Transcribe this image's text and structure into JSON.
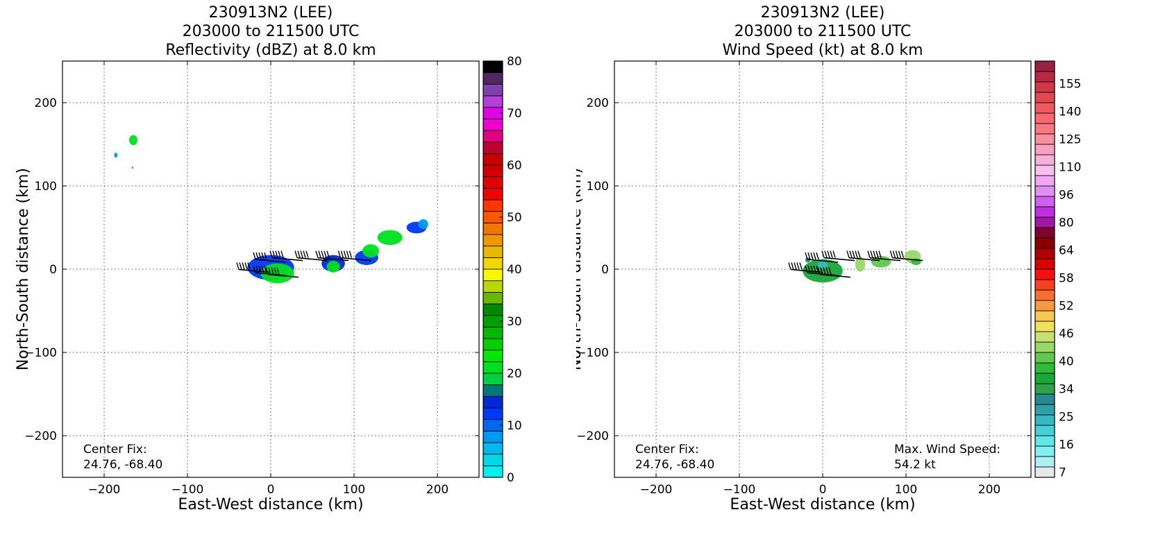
{
  "charts": [
    {
      "title_lines": [
        "230913N2 (LEE)",
        "203000 to 211500 UTC",
        "Reflectivity (dBZ) at 8.0 km"
      ],
      "xlabel": "East-West distance (km)",
      "ylabel": "North-South distance (km)",
      "info_left": [
        "Center Fix:",
        "24.76, -68.40"
      ],
      "colorbar_ticks": [
        "0",
        "10",
        "20",
        "30",
        "40",
        "50",
        "60",
        "70",
        "80"
      ]
    },
    {
      "title_lines": [
        "230913N2 (LEE)",
        "203000 to 211500 UTC",
        "Wind Speed (kt) at 8.0 km"
      ],
      "xlabel": "East-West distance (km)",
      "ylabel": "North-South distance (km)",
      "info_left": [
        "Center Fix:",
        "24.76, -68.40"
      ],
      "info_right": [
        "Max. Wind Speed:",
        "54.2 kt"
      ],
      "colorbar_ticks": [
        "7",
        "16",
        "25",
        "34",
        "40",
        "46",
        "52",
        "58",
        "64",
        "80",
        "96",
        "110",
        "125",
        "140",
        "155"
      ]
    }
  ],
  "chart_data": [
    {
      "type": "heatmap",
      "variable": "Reflectivity (dBZ)",
      "x_ticks": [
        -200,
        -100,
        0,
        100,
        200
      ],
      "y_ticks": [
        -200,
        -100,
        0,
        100,
        200
      ],
      "xlim": [
        -250,
        250
      ],
      "ylim": [
        -250,
        250
      ],
      "grid": true,
      "colorbar": {
        "range": [
          0,
          80
        ],
        "step": 2.5,
        "colors": [
          "#00f0f0",
          "#00d8e8",
          "#00b8f0",
          "#0098f0",
          "#0068f0",
          "#0038f8",
          "#0028d8",
          "#007878",
          "#00d040",
          "#00e020",
          "#00e800",
          "#00d000",
          "#00b800",
          "#00a000",
          "#008800",
          "#68b800",
          "#b8d800",
          "#f8f800",
          "#f0d800",
          "#e8b800",
          "#f09800",
          "#f07800",
          "#f85800",
          "#f83800",
          "#f00000",
          "#e00000",
          "#d00000",
          "#c80000",
          "#c00030",
          "#e00080",
          "#f000d0",
          "#e000e8",
          "#b040d8",
          "#8040b0",
          "#502860",
          "#000000"
        ]
      },
      "echo_regions": [
        {
          "x": -165,
          "y": 155,
          "rx": 5,
          "ry": 6,
          "dbz": 22
        },
        {
          "x": -186,
          "y": 137,
          "rx": 2,
          "ry": 3,
          "dbz": 8
        },
        {
          "x": -166,
          "y": 122,
          "rx": 1,
          "ry": 1.5,
          "dbz": 5
        },
        {
          "x": 0,
          "y": 2,
          "rx": 28,
          "ry": 15,
          "dbz": 12
        },
        {
          "x": 8,
          "y": -5,
          "rx": 20,
          "ry": 12,
          "dbz": 22
        },
        {
          "x": 75,
          "y": 7,
          "rx": 14,
          "ry": 10,
          "dbz": 14
        },
        {
          "x": 75,
          "y": 3,
          "rx": 8,
          "ry": 7,
          "dbz": 22
        },
        {
          "x": 115,
          "y": 14,
          "rx": 14,
          "ry": 9,
          "dbz": 13
        },
        {
          "x": 120,
          "y": 22,
          "rx": 10,
          "ry": 8,
          "dbz": 22
        },
        {
          "x": 143,
          "y": 38,
          "rx": 15,
          "ry": 9,
          "dbz": 22
        },
        {
          "x": 175,
          "y": 50,
          "rx": 12,
          "ry": 7,
          "dbz": 12
        },
        {
          "x": 183,
          "y": 54,
          "rx": 6,
          "ry": 6,
          "dbz": 8
        }
      ],
      "wind_barbs": [
        {
          "x": -20,
          "y": -2
        },
        {
          "x": 0,
          "y": -6
        },
        {
          "x": 15,
          "y": -8
        },
        {
          "x": 0,
          "y": 10
        },
        {
          "x": 20,
          "y": 12
        },
        {
          "x": 50,
          "y": 12
        },
        {
          "x": 75,
          "y": 12
        },
        {
          "x": 102,
          "y": 12
        }
      ]
    },
    {
      "type": "heatmap",
      "variable": "Wind Speed (kt)",
      "x_ticks": [
        -200,
        -100,
        0,
        100,
        200
      ],
      "y_ticks": [
        -200,
        -100,
        0,
        100,
        200
      ],
      "xlim": [
        -250,
        250
      ],
      "ylim": [
        -250,
        250
      ],
      "grid": true,
      "max_wind_speed_kt": 54.2,
      "colorbar": {
        "range": [
          4,
          160
        ],
        "colors": [
          "#e8e8e8",
          "#b0f0f0",
          "#80f0f0",
          "#60e8e8",
          "#48d0d8",
          "#38b8c0",
          "#30a0a8",
          "#288890",
          "#30a048",
          "#18a838",
          "#30b838",
          "#60c850",
          "#98d868",
          "#c8e070",
          "#f0e060",
          "#f8c850",
          "#f89840",
          "#f87030",
          "#f84020",
          "#f81010",
          "#d80000",
          "#b00000",
          "#880000",
          "#800030",
          "#a018a0",
          "#c030e0",
          "#d060f0",
          "#e090f0",
          "#f0a8f0",
          "#f8c0f0",
          "#f8b0d8",
          "#f8a0c0",
          "#f890a0",
          "#f87880",
          "#f86870",
          "#f05860",
          "#e04850",
          "#d03848",
          "#b82840",
          "#982040"
        ]
      },
      "wind_regions": [
        {
          "x": -18,
          "y": 11,
          "rx": 3,
          "ry": 3,
          "kt": 32
        },
        {
          "x": 0,
          "y": -2,
          "rx": 24,
          "ry": 14,
          "kt": 42
        },
        {
          "x": 0,
          "y": 5,
          "rx": 6,
          "ry": 5,
          "kt": 25
        },
        {
          "x": 45,
          "y": 6,
          "rx": 6,
          "ry": 9,
          "kt": 54
        },
        {
          "x": 70,
          "y": 9,
          "rx": 12,
          "ry": 7,
          "kt": 49
        },
        {
          "x": 108,
          "y": 15,
          "rx": 10,
          "ry": 8,
          "kt": 52
        },
        {
          "x": 112,
          "y": 9,
          "rx": 6,
          "ry": 4,
          "kt": 44
        }
      ],
      "wind_barbs": [
        {
          "x": -20,
          "y": -2
        },
        {
          "x": 0,
          "y": -6
        },
        {
          "x": 15,
          "y": -8
        },
        {
          "x": 0,
          "y": 10
        },
        {
          "x": 20,
          "y": 12
        },
        {
          "x": 50,
          "y": 12
        },
        {
          "x": 75,
          "y": 12
        },
        {
          "x": 102,
          "y": 12
        }
      ]
    }
  ]
}
